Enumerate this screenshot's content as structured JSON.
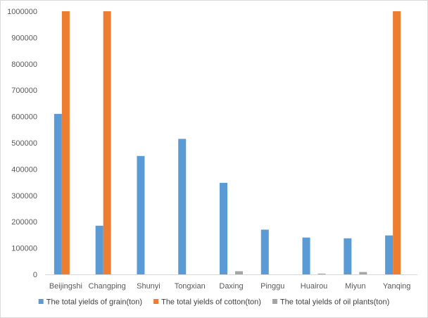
{
  "chart_data": {
    "type": "bar",
    "categories": [
      "Beijingshi",
      "Changping",
      "Shunyi",
      "Tongxian",
      "Daxing",
      "Pinggu",
      "Huairou",
      "Miyun",
      "Yanqing"
    ],
    "series": [
      {
        "name": "The total yields of grain(ton)",
        "color": "#5b9bd5",
        "values": [
          610000,
          185000,
          450000,
          515000,
          348000,
          170000,
          140000,
          137000,
          148000
        ]
      },
      {
        "name": "The total yields of cotton(ton)",
        "color": "#ed7d31",
        "values": [
          1000000,
          1000000,
          0,
          0,
          0,
          0,
          0,
          0,
          1000000
        ]
      },
      {
        "name": "The total yields of oil plants(ton)",
        "color": "#a5a5a5",
        "values": [
          0,
          0,
          0,
          0,
          12000,
          0,
          3000,
          9000,
          0
        ]
      }
    ],
    "ylim": [
      0,
      1000000
    ],
    "yticks": [
      "0",
      "100000",
      "200000",
      "300000",
      "400000",
      "500000",
      "600000",
      "700000",
      "800000",
      "900000",
      "1000000"
    ],
    "grid": false,
    "legend_position": "bottom",
    "title": "",
    "xlabel": "",
    "ylabel": ""
  }
}
